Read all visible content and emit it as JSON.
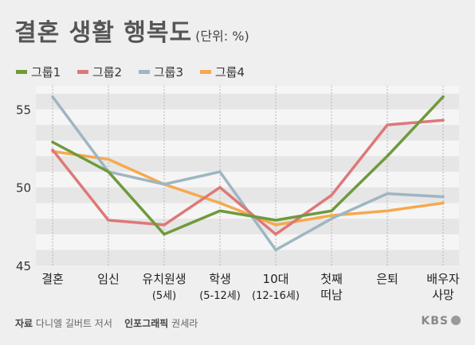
{
  "header": {
    "title": "결혼 생활 행복도",
    "unit": "(단위: %)"
  },
  "footer": {
    "source_label": "자료",
    "source": "다니엘 길버트 저서",
    "graphic_label": "인포그래픽",
    "graphic_author": "권세라",
    "brand": "KBS"
  },
  "chart_data": {
    "type": "line",
    "title": "결혼 생활 행복도",
    "unit": "(단위: %)",
    "categories": [
      [
        "결혼"
      ],
      [
        "임신"
      ],
      [
        "유치원생",
        "(5세)"
      ],
      [
        "학생",
        "(5-12세)"
      ],
      [
        "10대",
        "(12-16세)"
      ],
      [
        "첫째",
        "떠남"
      ],
      [
        "은퇴"
      ],
      [
        "배우자",
        "사망"
      ]
    ],
    "yticks": [
      45,
      50,
      55
    ],
    "ylim": [
      45,
      56.5
    ],
    "grid": "horizontal bands",
    "legend_position": "top-left",
    "series": [
      {
        "name": "그룹1",
        "color": "#6f9a3c",
        "values": [
          52.9,
          51.0,
          47.0,
          48.5,
          47.9,
          48.5,
          52.0,
          55.8
        ]
      },
      {
        "name": "그룹2",
        "color": "#de7878",
        "values": [
          52.4,
          47.9,
          47.6,
          50.0,
          47.0,
          49.5,
          54.0,
          54.3
        ]
      },
      {
        "name": "그룹3",
        "color": "#9eb6c1",
        "values": [
          55.8,
          51.0,
          50.2,
          51.0,
          46.0,
          48.0,
          49.6,
          49.4
        ]
      },
      {
        "name": "그룹4",
        "color": "#f6a94e",
        "values": [
          52.3,
          51.8,
          50.2,
          49.0,
          47.6,
          48.2,
          48.5,
          49.0
        ]
      }
    ]
  }
}
